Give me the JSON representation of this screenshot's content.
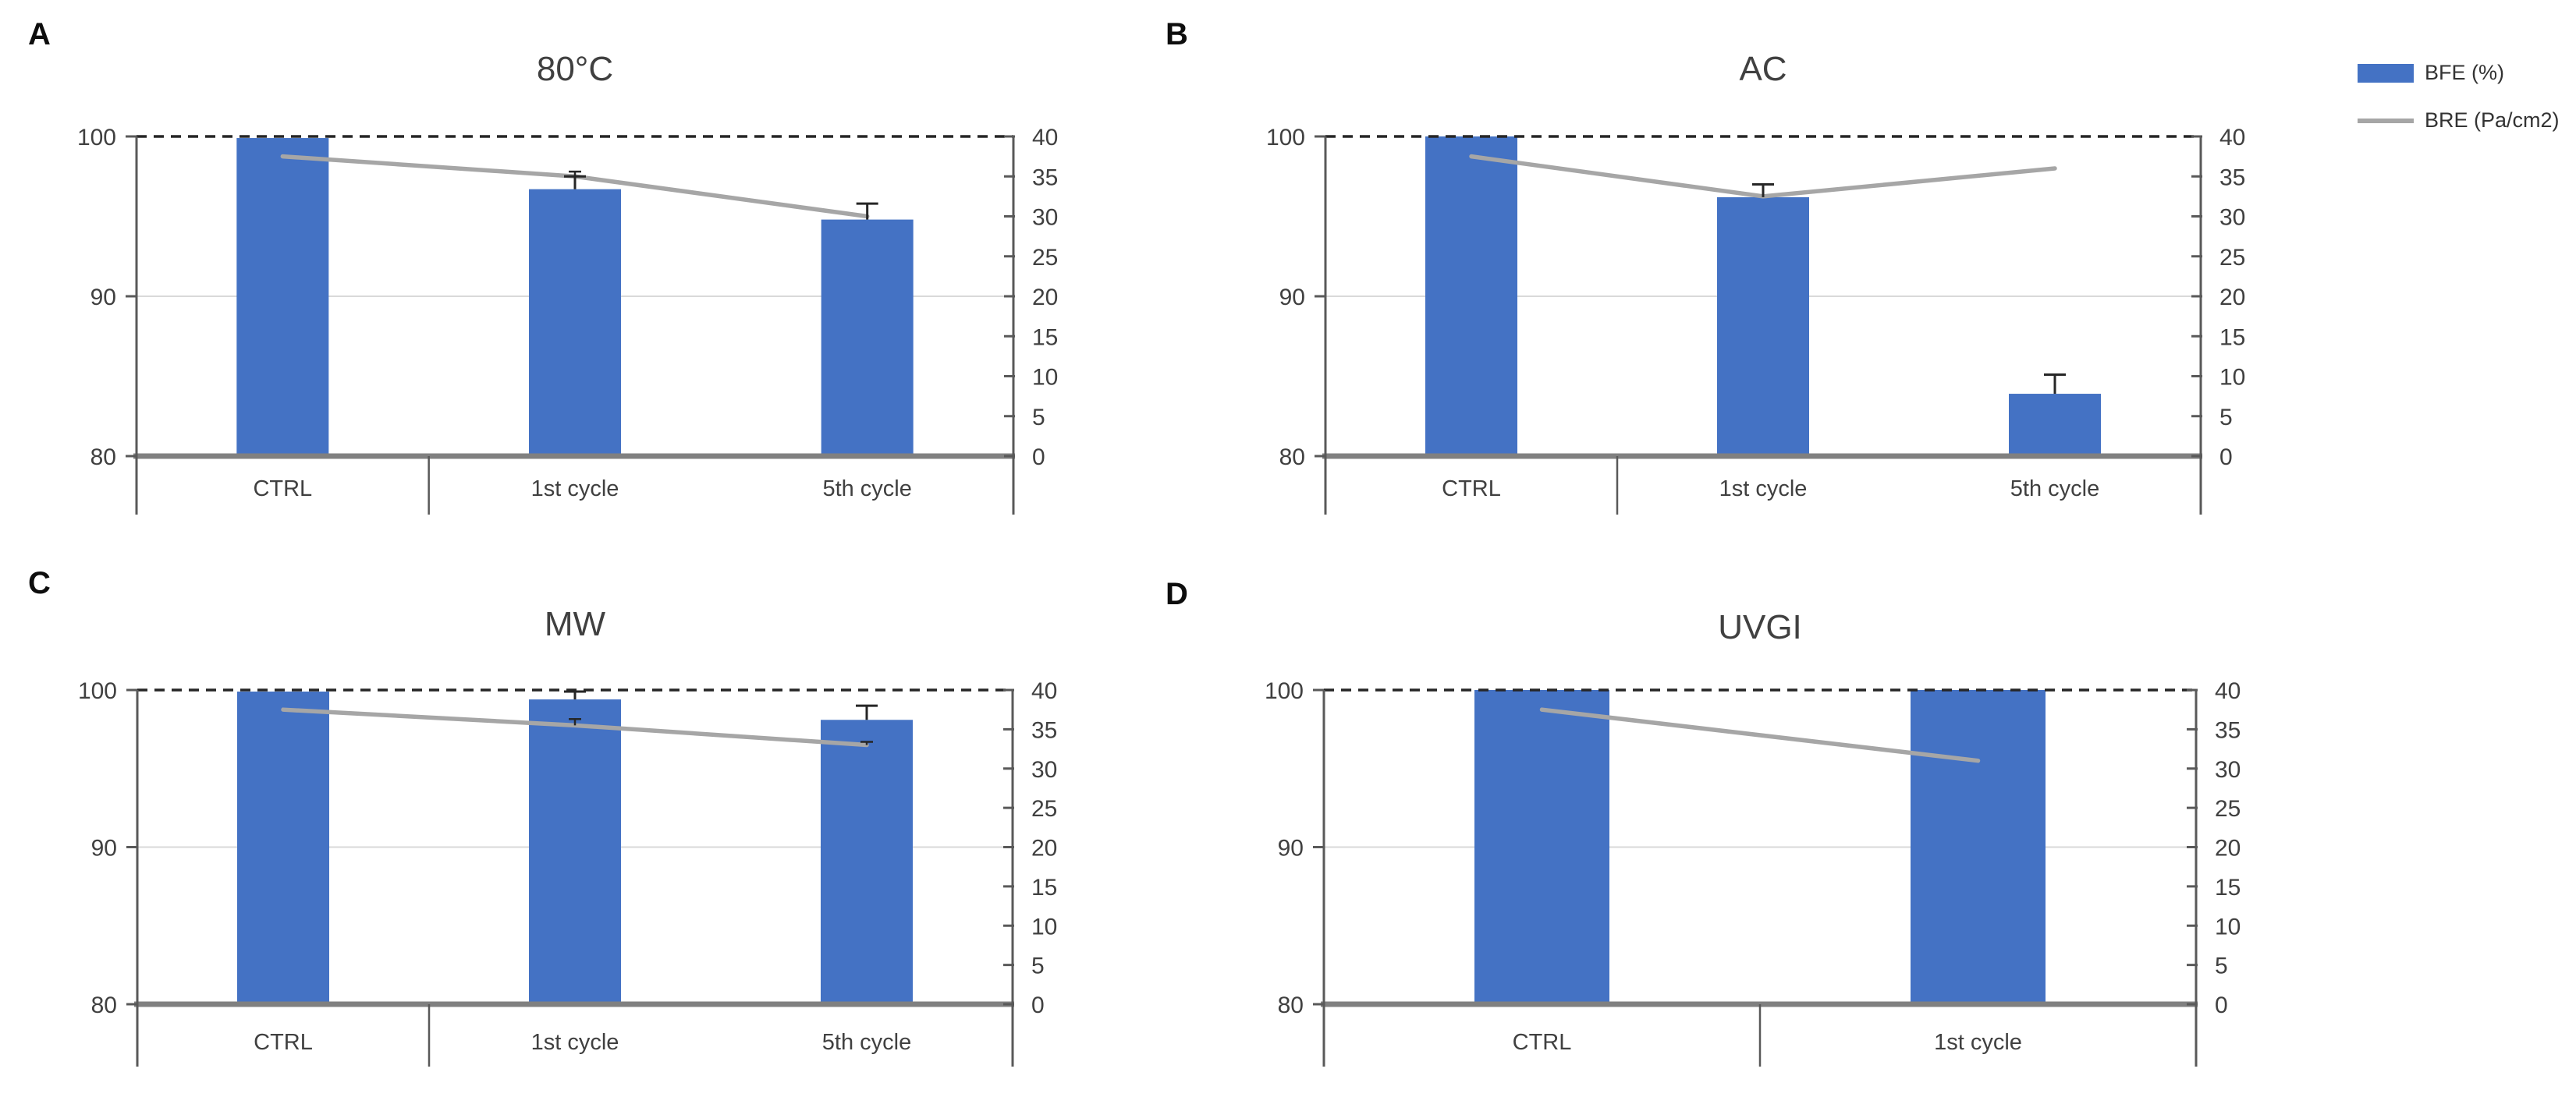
{
  "figure": {
    "background": "#ffffff"
  },
  "colors": {
    "bar": "#4472C4",
    "line": "#A6A6A6",
    "dashed": "#262626",
    "axis": "#595959",
    "thick_axis": "#808080",
    "gridline": "#D9D9D9",
    "error": "#262626",
    "tick_label": "#404040",
    "title": "#404040",
    "panel_letter": "#0d0d0d"
  },
  "legend": {
    "items": [
      {
        "label": "BFE (%)",
        "type": "bar",
        "color": "#4472C4"
      },
      {
        "label": "BRE (Pa/cm2)",
        "type": "line",
        "color": "#A6A6A6"
      }
    ]
  },
  "chart_data": [
    {
      "panel_letter": "A",
      "title": "80°C",
      "type": "bar",
      "categories": [
        "CTRL",
        "1st cycle",
        "5th cycle"
      ],
      "series": [
        {
          "name": "BFE (%)",
          "type": "bar",
          "axis": "left",
          "values": [
            99.9,
            96.7,
            94.8
          ],
          "errors": [
            0,
            0.8,
            1.0
          ]
        },
        {
          "name": "BRE (Pa/cm2)",
          "type": "line",
          "axis": "right",
          "values": [
            37.5,
            35,
            30
          ],
          "errors": [
            0,
            0.6,
            0
          ]
        }
      ],
      "left_axis": {
        "ticks": [
          80,
          90,
          100
        ],
        "range": [
          80,
          100
        ]
      },
      "right_axis": {
        "ticks": [
          0,
          5,
          10,
          15,
          20,
          25,
          30,
          35,
          40
        ],
        "range": [
          0,
          40
        ]
      },
      "dashed_line_at_left_value": 100,
      "gridline_at_left_value": 90,
      "legend_position": "none"
    },
    {
      "panel_letter": "B",
      "title": "AC",
      "type": "bar",
      "categories": [
        "CTRL",
        "1st cycle",
        "5th cycle"
      ],
      "series": [
        {
          "name": "BFE (%)",
          "type": "bar",
          "axis": "left",
          "values": [
            100,
            96.2,
            83.9
          ],
          "errors": [
            0,
            0.8,
            1.2
          ]
        },
        {
          "name": "BRE (Pa/cm2)",
          "type": "line",
          "axis": "right",
          "values": [
            37.5,
            32.5,
            36
          ],
          "errors": [
            0,
            1.5,
            0
          ]
        }
      ],
      "left_axis": {
        "ticks": [
          80,
          90,
          100
        ],
        "range": [
          80,
          100
        ]
      },
      "right_axis": {
        "ticks": [
          0,
          5,
          10,
          15,
          20,
          25,
          30,
          35,
          40
        ],
        "range": [
          0,
          40
        ]
      },
      "dashed_line_at_left_value": 100,
      "gridline_at_left_value": 90,
      "legend_position": "none"
    },
    {
      "panel_letter": "C",
      "title": "MW",
      "type": "bar",
      "categories": [
        "CTRL",
        "1st cycle",
        "5th cycle"
      ],
      "series": [
        {
          "name": "BFE (%)",
          "type": "bar",
          "axis": "left",
          "values": [
            99.9,
            99.4,
            98.1
          ],
          "errors": [
            0,
            0.5,
            0.9
          ]
        },
        {
          "name": "BRE (Pa/cm2)",
          "type": "line",
          "axis": "right",
          "values": [
            37.5,
            35.5,
            33
          ],
          "errors": [
            0,
            0.8,
            0.4
          ]
        }
      ],
      "left_axis": {
        "ticks": [
          80,
          90,
          100
        ],
        "range": [
          80,
          100
        ]
      },
      "right_axis": {
        "ticks": [
          0,
          5,
          10,
          15,
          20,
          25,
          30,
          35,
          40
        ],
        "range": [
          0,
          40
        ]
      },
      "dashed_line_at_left_value": 100,
      "gridline_at_left_value": 90,
      "legend_position": "none"
    },
    {
      "panel_letter": "D",
      "title": "UVGI",
      "type": "bar",
      "categories": [
        "CTRL",
        "1st cycle"
      ],
      "series": [
        {
          "name": "BFE (%)",
          "type": "bar",
          "axis": "left",
          "values": [
            100,
            100
          ],
          "errors": [
            0,
            0
          ]
        },
        {
          "name": "BRE (Pa/cm2)",
          "type": "line",
          "axis": "right",
          "values": [
            37.5,
            31
          ],
          "errors": [
            0,
            0
          ]
        }
      ],
      "left_axis": {
        "ticks": [
          80,
          90,
          100
        ],
        "range": [
          80,
          100
        ]
      },
      "right_axis": {
        "ticks": [
          0,
          5,
          10,
          15,
          20,
          25,
          30,
          35,
          40
        ],
        "range": [
          0,
          40
        ]
      },
      "dashed_line_at_left_value": 100,
      "gridline_at_left_value": 90,
      "legend_position": "none"
    }
  ]
}
